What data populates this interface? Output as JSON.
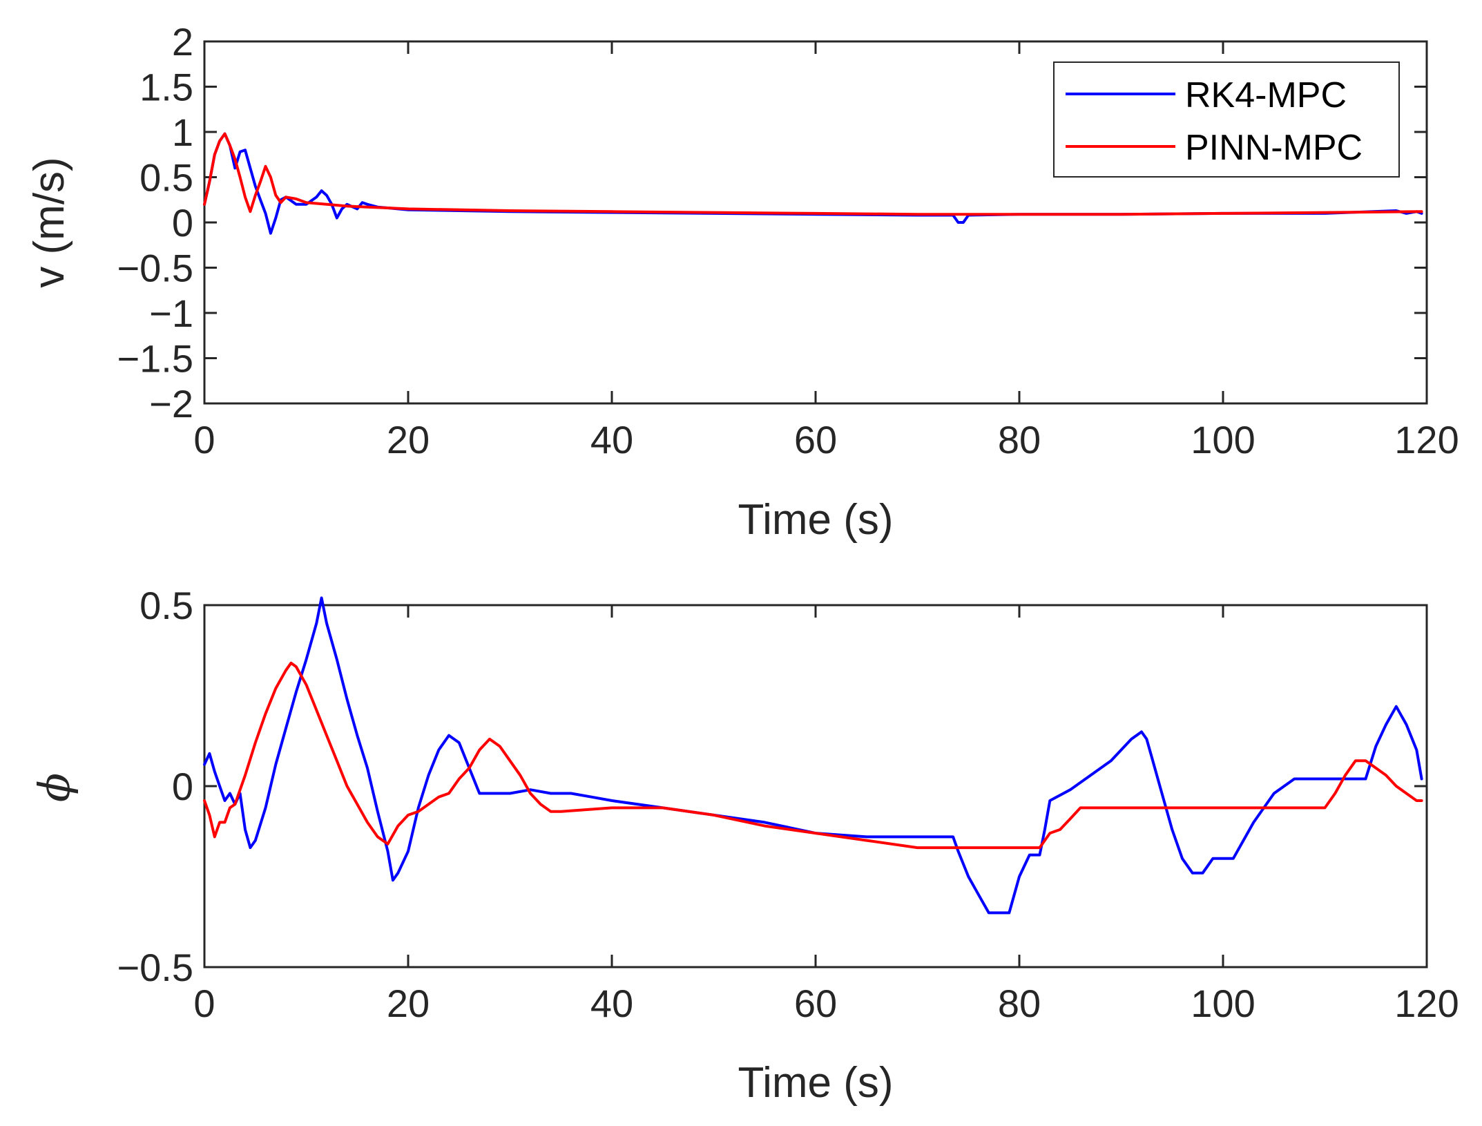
{
  "colors": {
    "rk4": "#0000ff",
    "pinn": "#ff0000",
    "axis": "#262626"
  },
  "chart_data": [
    {
      "type": "line",
      "xlabel": "Time (s)",
      "ylabel": "v (m/s)",
      "xlim": [
        0,
        120
      ],
      "ylim": [
        -2,
        2
      ],
      "xticks": [
        0,
        20,
        40,
        60,
        80,
        100,
        120
      ],
      "xtick_labels": [
        "0",
        "20",
        "40",
        "60",
        "80",
        "100",
        "120"
      ],
      "yticks": [
        -2,
        -1.5,
        -1,
        -0.5,
        0,
        0.5,
        1,
        1.5,
        2
      ],
      "ytick_labels": [
        "−2",
        "−1.5",
        "−1",
        "−0.5",
        "0",
        "0.5",
        "1",
        "1.5",
        "2"
      ],
      "legend": {
        "position": "top-right",
        "entries": [
          "RK4-MPC",
          "PINN-MPC"
        ]
      },
      "series": [
        {
          "name": "RK4-MPC",
          "color": "#0000ff",
          "x": [
            0,
            0.5,
            1,
            1.5,
            2,
            2.5,
            3,
            3.5,
            4,
            4.5,
            5,
            5.5,
            6,
            6.5,
            7,
            7.5,
            8,
            9,
            10,
            11,
            11.5,
            12,
            12.5,
            13,
            13.5,
            14,
            15,
            15.5,
            16,
            17,
            18,
            20,
            25,
            30,
            40,
            50,
            60,
            70,
            73.5,
            74,
            74.5,
            75,
            80,
            90,
            100,
            110,
            117,
            118,
            119,
            119.5
          ],
          "y": [
            0.2,
            0.45,
            0.75,
            0.9,
            0.98,
            0.85,
            0.6,
            0.78,
            0.8,
            0.6,
            0.4,
            0.25,
            0.1,
            -0.12,
            0.05,
            0.25,
            0.28,
            0.2,
            0.2,
            0.28,
            0.35,
            0.3,
            0.2,
            0.05,
            0.15,
            0.2,
            0.15,
            0.22,
            0.2,
            0.17,
            0.16,
            0.14,
            0.13,
            0.12,
            0.11,
            0.1,
            0.09,
            0.08,
            0.08,
            0.0,
            0.0,
            0.08,
            0.09,
            0.09,
            0.1,
            0.1,
            0.13,
            0.1,
            0.12,
            0.1
          ]
        },
        {
          "name": "PINN-MPC",
          "color": "#ff0000",
          "x": [
            0,
            0.5,
            1,
            1.5,
            2,
            2.5,
            3,
            3.5,
            4,
            4.5,
            5,
            5.5,
            6,
            6.5,
            7,
            7.5,
            8,
            9,
            10,
            12,
            14,
            16,
            18,
            20,
            30,
            40,
            50,
            60,
            70,
            80,
            90,
            100,
            110,
            119.5
          ],
          "y": [
            0.2,
            0.45,
            0.75,
            0.9,
            0.98,
            0.85,
            0.7,
            0.5,
            0.28,
            0.12,
            0.3,
            0.45,
            0.62,
            0.5,
            0.3,
            0.22,
            0.28,
            0.26,
            0.22,
            0.2,
            0.18,
            0.17,
            0.16,
            0.15,
            0.13,
            0.12,
            0.11,
            0.1,
            0.09,
            0.09,
            0.09,
            0.1,
            0.11,
            0.12
          ]
        }
      ]
    },
    {
      "type": "line",
      "xlabel": "Time (s)",
      "ylabel": "ϕ",
      "xlim": [
        0,
        120
      ],
      "ylim": [
        -0.5,
        0.5
      ],
      "xticks": [
        0,
        20,
        40,
        60,
        80,
        100,
        120
      ],
      "xtick_labels": [
        "0",
        "20",
        "40",
        "60",
        "80",
        "100",
        "120"
      ],
      "yticks": [
        -0.5,
        0,
        0.5
      ],
      "ytick_labels": [
        "−0.5",
        "0",
        "0.5"
      ],
      "series": [
        {
          "name": "RK4-MPC",
          "color": "#0000ff",
          "x": [
            0,
            0.5,
            1,
            1.5,
            2,
            2.5,
            3,
            3.5,
            4,
            4.5,
            5,
            6,
            7,
            8,
            9,
            10,
            11,
            11.5,
            12,
            13,
            14,
            15,
            16,
            17,
            18,
            18.5,
            19,
            20,
            21,
            22,
            23,
            24,
            25,
            26,
            27,
            28,
            30,
            32,
            34,
            36,
            38,
            40,
            45,
            50,
            55,
            60,
            65,
            70,
            73.5,
            74,
            75,
            76,
            77,
            78,
            79,
            80,
            81,
            82,
            82.5,
            83,
            85,
            87,
            89,
            90,
            91,
            92,
            92.5,
            93,
            94,
            95,
            96,
            97,
            98,
            99,
            100,
            101,
            103,
            105,
            107,
            109,
            111,
            113,
            114,
            115,
            116,
            117,
            118,
            119,
            119.5
          ],
          "y": [
            0.06,
            0.09,
            0.04,
            0.0,
            -0.04,
            -0.02,
            -0.05,
            -0.02,
            -0.12,
            -0.17,
            -0.15,
            -0.06,
            0.06,
            0.16,
            0.26,
            0.35,
            0.45,
            0.52,
            0.45,
            0.35,
            0.24,
            0.14,
            0.05,
            -0.07,
            -0.18,
            -0.26,
            -0.24,
            -0.18,
            -0.06,
            0.03,
            0.1,
            0.14,
            0.12,
            0.05,
            -0.02,
            -0.02,
            -0.02,
            -0.01,
            -0.02,
            -0.02,
            -0.03,
            -0.04,
            -0.06,
            -0.08,
            -0.1,
            -0.13,
            -0.14,
            -0.14,
            -0.14,
            -0.18,
            -0.25,
            -0.3,
            -0.35,
            -0.35,
            -0.35,
            -0.25,
            -0.19,
            -0.19,
            -0.12,
            -0.04,
            -0.01,
            0.03,
            0.07,
            0.1,
            0.13,
            0.15,
            0.13,
            0.08,
            -0.02,
            -0.12,
            -0.2,
            -0.24,
            -0.24,
            -0.2,
            -0.2,
            -0.2,
            -0.1,
            -0.02,
            0.02,
            0.02,
            0.02,
            0.02,
            0.02,
            0.11,
            0.17,
            0.22,
            0.17,
            0.1,
            0.02
          ]
        },
        {
          "name": "PINN-MPC",
          "color": "#ff0000",
          "x": [
            0,
            0.5,
            1,
            1.5,
            2,
            2.5,
            3,
            4,
            5,
            6,
            7,
            8,
            8.5,
            9,
            10,
            11,
            12,
            13,
            14,
            15,
            16,
            17,
            18,
            19,
            20,
            21,
            22,
            23,
            24,
            25,
            26,
            27,
            28,
            29,
            30,
            31,
            32,
            33,
            34,
            35,
            40,
            45,
            50,
            55,
            60,
            65,
            70,
            75,
            80,
            82,
            83,
            84,
            85,
            86,
            90,
            95,
            100,
            105,
            108,
            110,
            111,
            112,
            113,
            114,
            115,
            116,
            117,
            118,
            119,
            119.5
          ],
          "y": [
            -0.04,
            -0.08,
            -0.14,
            -0.1,
            -0.1,
            -0.06,
            -0.05,
            0.03,
            0.12,
            0.2,
            0.27,
            0.32,
            0.34,
            0.33,
            0.28,
            0.21,
            0.14,
            0.07,
            0.0,
            -0.05,
            -0.1,
            -0.14,
            -0.16,
            -0.11,
            -0.08,
            -0.07,
            -0.05,
            -0.03,
            -0.02,
            0.02,
            0.05,
            0.1,
            0.13,
            0.11,
            0.07,
            0.03,
            -0.02,
            -0.05,
            -0.07,
            -0.07,
            -0.06,
            -0.06,
            -0.08,
            -0.11,
            -0.13,
            -0.15,
            -0.17,
            -0.17,
            -0.17,
            -0.17,
            -0.13,
            -0.12,
            -0.09,
            -0.06,
            -0.06,
            -0.06,
            -0.06,
            -0.06,
            -0.06,
            -0.06,
            -0.02,
            0.03,
            0.07,
            0.07,
            0.05,
            0.03,
            0.0,
            -0.02,
            -0.04,
            -0.04
          ]
        }
      ]
    }
  ]
}
